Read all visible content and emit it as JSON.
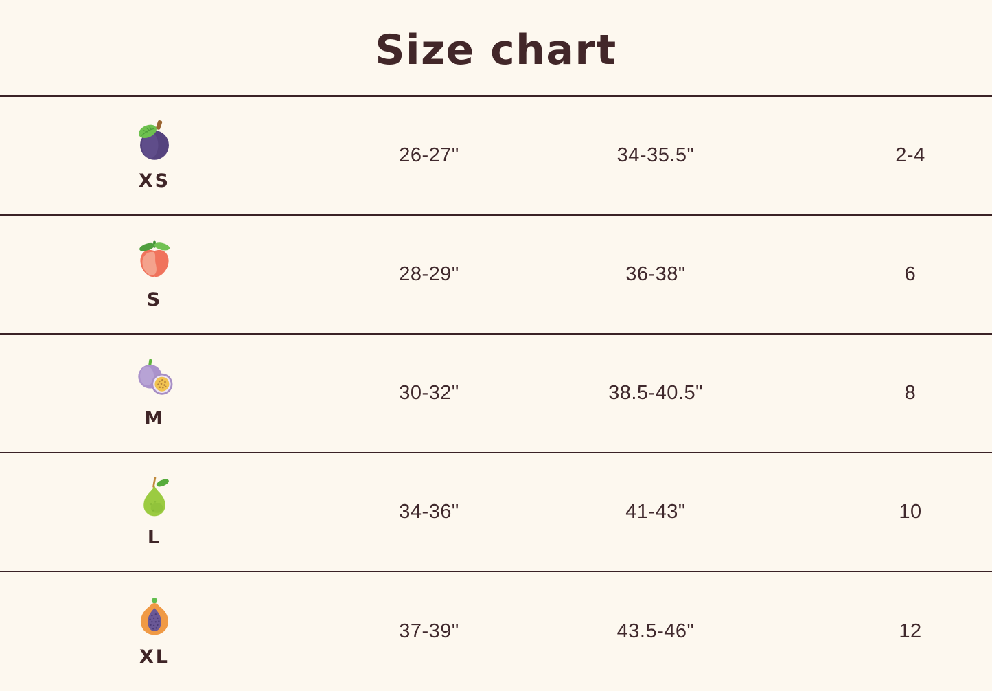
{
  "page": {
    "title": "Size chart",
    "colors": {
      "background": "#FDF8EF",
      "heading_text": "#422729",
      "body_text": "#40292D",
      "divider": "#3A2226"
    }
  },
  "size_table": {
    "rows": [
      {
        "icon": "plum-icon",
        "size_label": "XS",
        "measurement_1": "26-27\"",
        "measurement_2": "34-35.5\"",
        "size_number": "2-4"
      },
      {
        "icon": "peach-icon",
        "size_label": "S",
        "measurement_1": "28-29\"",
        "measurement_2": "36-38\"",
        "size_number": "6"
      },
      {
        "icon": "passion-fruit-icon",
        "size_label": "M",
        "measurement_1": "30-32\"",
        "measurement_2": "38.5-40.5\"",
        "size_number": "8"
      },
      {
        "icon": "pear-icon",
        "size_label": "L",
        "measurement_1": "34-36\"",
        "measurement_2": "41-43\"",
        "size_number": "10"
      },
      {
        "icon": "papaya-icon",
        "size_label": "XL",
        "measurement_1": "37-39\"",
        "measurement_2": "43.5-46\"",
        "size_number": "12"
      }
    ]
  }
}
